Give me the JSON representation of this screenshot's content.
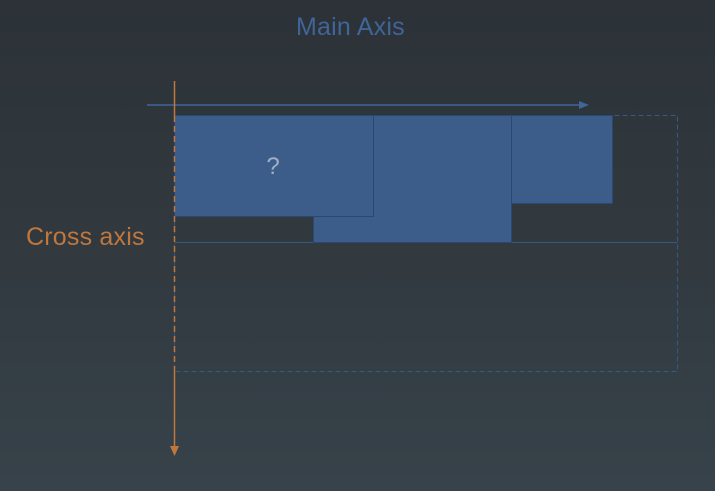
{
  "labels": {
    "main_axis": "Main Axis",
    "cross_axis": "Cross axis",
    "question_mark": "?"
  },
  "colors": {
    "main_axis": "#3f6599",
    "cross_axis": "#c0773e",
    "box_fill": "#3c5d8a",
    "box_border": "#294873",
    "container_outline": "#365a85",
    "question_mark": "#9fb0c4"
  }
}
